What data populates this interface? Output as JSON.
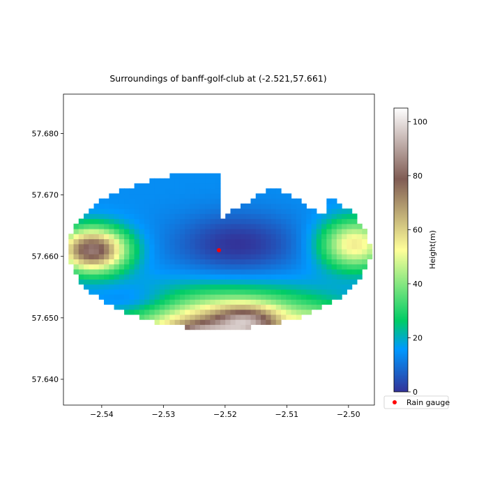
{
  "chart_data": {
    "type": "heatmap",
    "title": "Surroundings of banff-golf-club at (-2.521,57.661)",
    "xlim": [
      -2.5462,
      -2.4958
    ],
    "ylim": [
      57.6358,
      57.6864
    ],
    "x_ticks": [
      {
        "value": -2.54,
        "label": "−2.54"
      },
      {
        "value": -2.53,
        "label": "−2.53"
      },
      {
        "value": -2.52,
        "label": "−2.52"
      },
      {
        "value": -2.51,
        "label": "−2.51"
      },
      {
        "value": -2.5,
        "label": "−2.50"
      }
    ],
    "y_ticks": [
      {
        "value": 57.64,
        "label": "57.640"
      },
      {
        "value": 57.65,
        "label": "57.650"
      },
      {
        "value": 57.66,
        "label": "57.660"
      },
      {
        "value": 57.67,
        "label": "57.670"
      },
      {
        "value": 57.68,
        "label": "57.680"
      }
    ],
    "grid": false,
    "colormap": "terrain",
    "colorbar": {
      "label": "Height(m)",
      "range": [
        0,
        105
      ],
      "ticks": [
        {
          "value": 0,
          "label": "0"
        },
        {
          "value": 20,
          "label": "20"
        },
        {
          "value": 40,
          "label": "40"
        },
        {
          "value": 60,
          "label": "60"
        },
        {
          "value": 80,
          "label": "80"
        },
        {
          "value": 100,
          "label": "100"
        }
      ]
    },
    "surface": {
      "center": [
        -2.521,
        57.661
      ],
      "radius_deg_lon": 0.0245,
      "radius_deg_lat": 0.0128,
      "cell_size_deg": 0.00082,
      "features": [
        {
          "x": -2.5245,
          "y": 57.6466,
          "height": 104
        },
        {
          "x": -2.5165,
          "y": 57.6495,
          "height": 98
        },
        {
          "x": -2.504,
          "y": 57.6475,
          "height": 85
        },
        {
          "x": -2.5415,
          "y": 57.6611,
          "height": 82
        },
        {
          "x": -2.499,
          "y": 57.662,
          "height": 62
        }
      ],
      "valley": {
        "x": -2.518,
        "y": 57.662,
        "height": 5
      }
    },
    "points": [
      {
        "name": "Rain gauge",
        "x": -2.521,
        "y": 57.661,
        "color": "#ff0000"
      }
    ],
    "legend": {
      "placement": "lower-right outside",
      "entries": [
        "Rain gauge"
      ]
    }
  }
}
